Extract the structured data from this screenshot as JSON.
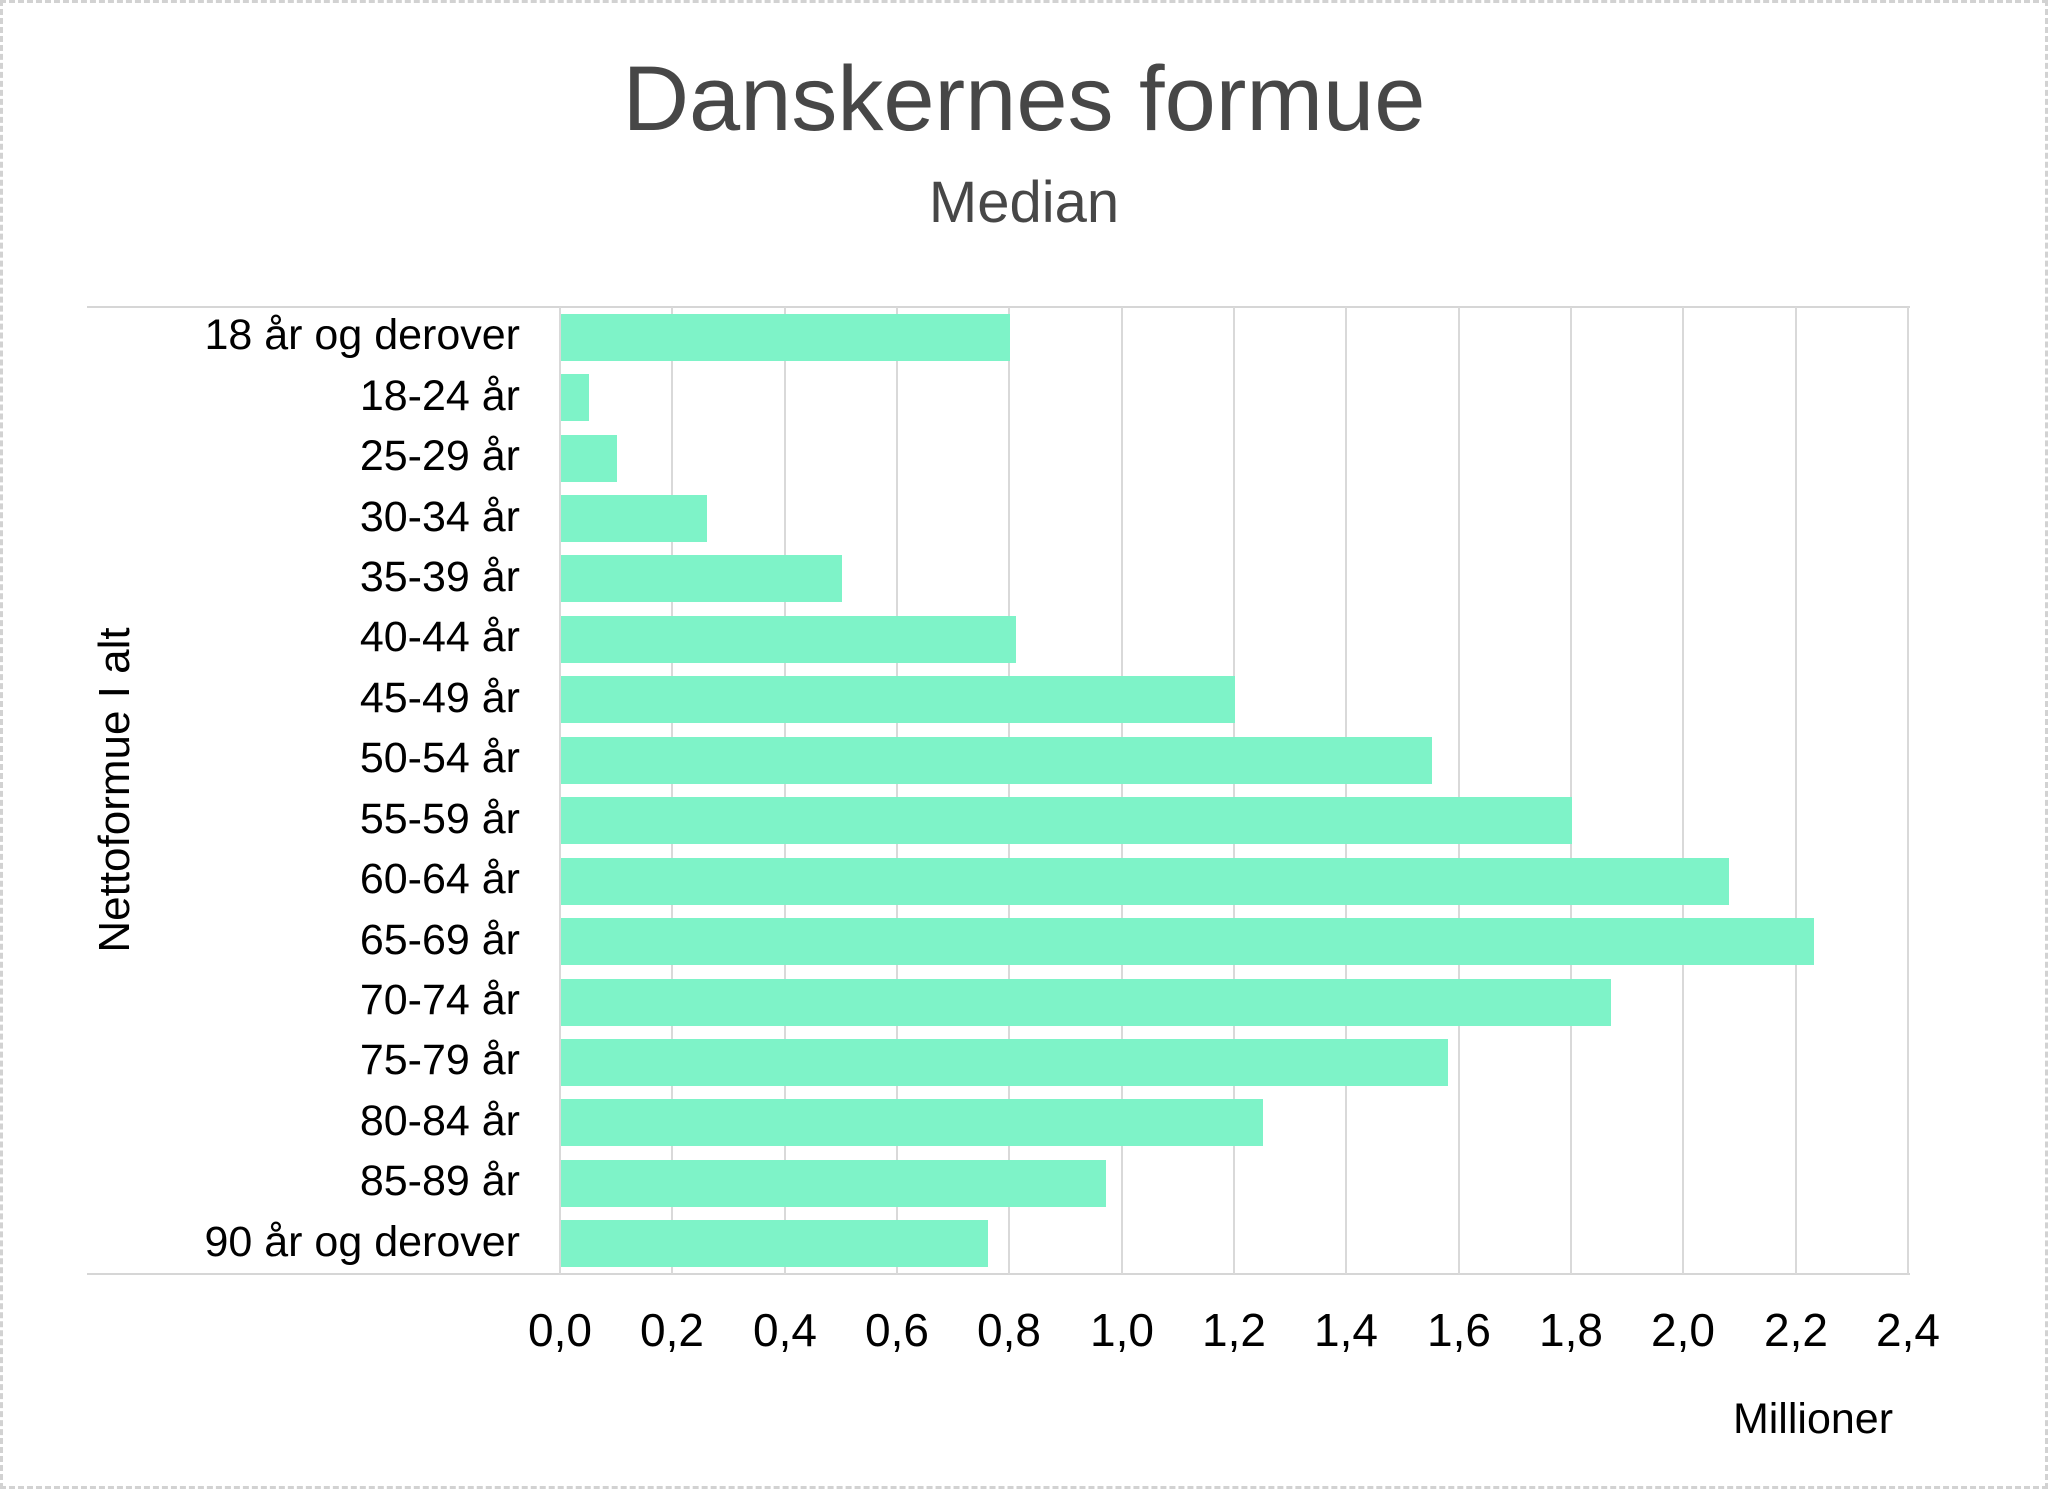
{
  "page": {
    "title": "Danskernes formue",
    "subtitle": "Median"
  },
  "colors": {
    "bar": "#7EF3C8",
    "title_text": "#474747",
    "axis_text": "#000000",
    "gridline": "#d9d9d9",
    "plot_border": "#d6d6d6",
    "outer_dashed_border": "#d2d2d2"
  },
  "chart_data": {
    "type": "bar",
    "orientation": "horizontal",
    "title": "Danskernes formue",
    "subtitle": "Median",
    "xlabel": "Millioner",
    "ylabel": "Nettoformue I alt",
    "xlim": [
      0.0,
      2.4
    ],
    "x_tick_step": 0.2,
    "x_tick_labels": [
      "0,0",
      "0,2",
      "0,4",
      "0,6",
      "0,8",
      "1,0",
      "1,2",
      "1,4",
      "1,6",
      "1,8",
      "2,0",
      "2,2",
      "2,4"
    ],
    "grid": true,
    "legend": false,
    "categories": [
      "18 år og derover",
      "18-24 år",
      "25-29 år",
      "30-34 år",
      "35-39 år",
      "40-44 år",
      "45-49 år",
      "50-54 år",
      "55-59 år",
      "60-64 år",
      "65-69 år",
      "70-74 år",
      "75-79 år",
      "80-84 år",
      "85-89 år",
      "90 år og derover"
    ],
    "values": [
      0.8,
      0.05,
      0.1,
      0.26,
      0.5,
      0.81,
      1.2,
      1.55,
      1.8,
      2.08,
      2.23,
      1.87,
      1.58,
      1.25,
      0.97,
      0.76
    ]
  }
}
